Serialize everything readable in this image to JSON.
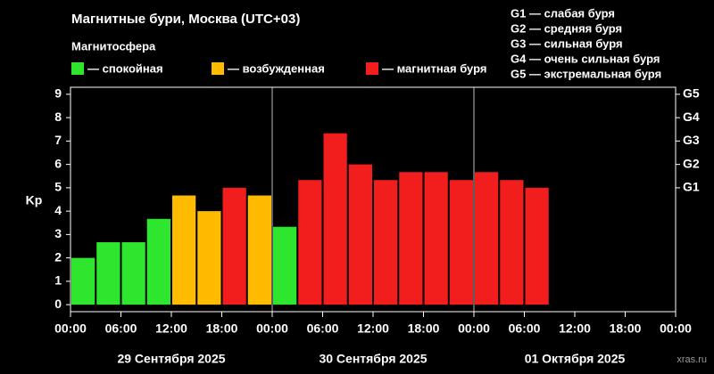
{
  "chart_data": {
    "type": "bar",
    "title": "Магнитные бури, Москва (UTC+03)",
    "legend_title": "Магнитосфера",
    "legend": [
      {
        "label": "— спокойная",
        "color": "#2ee62e"
      },
      {
        "label": "— возбужденная",
        "color": "#ffbb00"
      },
      {
        "label": "— магнитная буря",
        "color": "#f21d1d"
      }
    ],
    "scale_legend": [
      "G1 — слабая буря",
      "G2 — средняя буря",
      "G3 — сильная буря",
      "G4 — очень сильная буря",
      "G5 — экстремальная буря"
    ],
    "y_label": "Kp",
    "x": [
      0,
      3,
      6,
      9,
      12,
      15,
      18,
      21,
      24,
      27,
      30,
      33,
      36,
      39,
      42,
      45,
      48,
      51,
      54
    ],
    "values": [
      2,
      2.67,
      2.67,
      3.67,
      4.67,
      4,
      5,
      4.67,
      3.33,
      5.33,
      7.33,
      6,
      5.33,
      5.67,
      5.67,
      5.33,
      5.67,
      5.33,
      5
    ],
    "colors": [
      "#2ee62e",
      "#2ee62e",
      "#2ee62e",
      "#2ee62e",
      "#ffbb00",
      "#ffbb00",
      "#f21d1d",
      "#ffbb00",
      "#2ee62e",
      "#f21d1d",
      "#f21d1d",
      "#f21d1d",
      "#f21d1d",
      "#f21d1d",
      "#f21d1d",
      "#f21d1d",
      "#f21d1d",
      "#f21d1d",
      "#f21d1d"
    ],
    "xlim": [
      0,
      72
    ],
    "xticks": [
      {
        "value": 0,
        "label": "00:00"
      },
      {
        "value": 6,
        "label": "06:00"
      },
      {
        "value": 12,
        "label": "12:00"
      },
      {
        "value": 18,
        "label": "18:00"
      },
      {
        "value": 24,
        "label": "00:00"
      },
      {
        "value": 30,
        "label": "06:00"
      },
      {
        "value": 36,
        "label": "12:00"
      },
      {
        "value": 42,
        "label": "18:00"
      },
      {
        "value": 48,
        "label": "00:00"
      },
      {
        "value": 54,
        "label": "06:00"
      },
      {
        "value": 60,
        "label": "12:00"
      },
      {
        "value": 66,
        "label": "18:00"
      },
      {
        "value": 72,
        "label": "00:00"
      }
    ],
    "dates": [
      "29 Сентября 2025",
      "30 Сентября 2025",
      "01 Октября 2025"
    ],
    "ylim": [
      -0.3,
      9.3
    ],
    "yticks": [
      0,
      1,
      2,
      3,
      4,
      5,
      6,
      7,
      8,
      9
    ],
    "y2lim": [
      -0.3,
      9.3
    ],
    "y2ticks": [
      {
        "value": 5,
        "label": "G1"
      },
      {
        "value": 6,
        "label": "G2"
      },
      {
        "value": 7,
        "label": "G3"
      },
      {
        "value": 8,
        "label": "G4"
      },
      {
        "value": 9,
        "label": "G5"
      }
    ],
    "source": "xras.ru"
  }
}
